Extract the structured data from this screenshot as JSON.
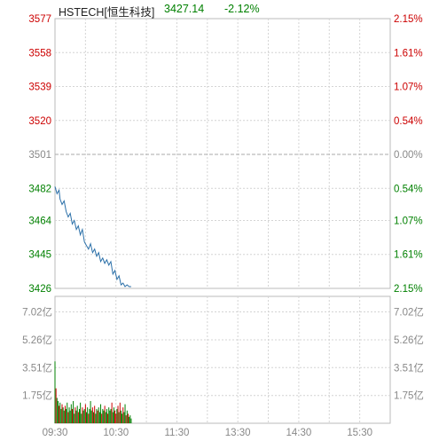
{
  "header": {
    "symbol": "HSTECH[恒生科技]",
    "price": "3427.14",
    "change_pct": "-2.12%"
  },
  "colors": {
    "up": "#cc0000",
    "down": "#008000",
    "neutral": "#888888",
    "price_line": "#2a6fa8",
    "grid": "#d4d4d4",
    "axis_text": "#333333"
  },
  "chart_data": [
    {
      "type": "line",
      "title": "",
      "xlabel": "",
      "ylabel": "",
      "ylim": [
        3426,
        3577
      ],
      "grid": true,
      "y_tick_labels_left": [
        "3577",
        "3558",
        "3539",
        "3520",
        "3501",
        "3482",
        "3464",
        "3445",
        "3426"
      ],
      "y_tick_values": [
        3577,
        3558,
        3539,
        3520,
        3501,
        3482,
        3464,
        3445,
        3426
      ],
      "y_tick_labels_right": [
        "2.15%",
        "1.61%",
        "1.07%",
        "0.54%",
        "0.00%",
        "0.54%",
        "1.07%",
        "1.61%",
        "2.15%"
      ],
      "y_tick_label_colors": [
        "up",
        "up",
        "up",
        "up",
        "neutral",
        "down",
        "down",
        "down",
        "down"
      ],
      "x_tick_labels": [
        "09:30",
        "10:30",
        "11:30",
        "13:30",
        "14:30",
        "15:30"
      ],
      "series": [
        {
          "x_minutes": [
            0,
            2,
            4,
            5,
            7,
            9,
            11,
            13,
            15,
            17,
            19,
            21,
            23,
            25,
            27,
            29,
            31,
            33,
            35,
            37,
            39,
            41,
            43,
            45,
            47,
            49,
            51,
            53,
            55,
            57,
            59,
            61,
            63,
            65,
            67,
            69,
            71,
            73,
            75
          ],
          "values": [
            3483,
            3479,
            3481,
            3476,
            3473,
            3475,
            3469,
            3466,
            3468,
            3462,
            3464,
            3459,
            3461,
            3456,
            3459,
            3452,
            3450,
            3448,
            3451,
            3446,
            3448,
            3444,
            3446,
            3441,
            3443,
            3440,
            3442,
            3439,
            3441,
            3434,
            3436,
            3431,
            3433,
            3428,
            3429,
            3427,
            3428,
            3427,
            3427
          ]
        }
      ]
    },
    {
      "type": "bar",
      "title": "",
      "ylim": [
        0,
        8.0
      ],
      "y_tick_labels": [
        "7.02亿",
        "5.26亿",
        "3.51亿",
        "1.75亿"
      ],
      "y_tick_values": [
        7.02,
        5.26,
        3.51,
        1.75
      ],
      "unit": "亿",
      "series": [
        {
          "x_minutes": [
            0,
            1,
            2,
            3,
            4,
            5,
            6,
            7,
            8,
            9,
            10,
            11,
            12,
            13,
            14,
            15,
            16,
            17,
            18,
            19,
            20,
            21,
            22,
            23,
            24,
            25,
            26,
            27,
            28,
            29,
            30,
            31,
            32,
            33,
            34,
            35,
            36,
            37,
            38,
            39,
            40,
            41,
            42,
            43,
            44,
            45,
            46,
            47,
            48,
            49,
            50,
            51,
            52,
            53,
            54,
            55,
            56,
            57,
            58,
            59,
            60,
            61,
            62,
            63,
            64,
            65,
            66,
            67,
            68,
            69,
            70,
            71,
            72,
            73,
            74,
            75
          ],
          "values": [
            3.9,
            2.2,
            1.6,
            1.4,
            1.1,
            1.3,
            0.9,
            1.2,
            1.0,
            0.8,
            1.1,
            0.9,
            1.3,
            0.7,
            1.0,
            0.8,
            1.2,
            0.9,
            1.4,
            0.6,
            1.0,
            0.8,
            1.1,
            0.7,
            0.9,
            1.3,
            0.6,
            1.0,
            0.8,
            0.9,
            1.2,
            0.7,
            1.0,
            0.6,
            0.9,
            1.4,
            0.8,
            1.0,
            0.7,
            1.1,
            0.6,
            0.9,
            0.8,
            1.0,
            0.7,
            1.2,
            0.6,
            0.9,
            0.8,
            1.1,
            0.7,
            0.9,
            0.6,
            1.0,
            0.8,
            0.9,
            1.3,
            0.7,
            1.0,
            0.8,
            0.6,
            0.9,
            1.1,
            0.7,
            1.3,
            0.8,
            0.6,
            1.0,
            0.7,
            1.2,
            0.5,
            0.8,
            0.6,
            0.4,
            0.5,
            0.3
          ],
          "direction": [
            "down",
            "up",
            "down",
            "down",
            "up",
            "down",
            "down",
            "up",
            "down",
            "down",
            "up",
            "down",
            "down",
            "up",
            "down",
            "down",
            "down",
            "up",
            "down",
            "down",
            "up",
            "down",
            "down",
            "up",
            "down",
            "down",
            "down",
            "up",
            "down",
            "down",
            "up",
            "down",
            "down",
            "up",
            "down",
            "down",
            "down",
            "up",
            "down",
            "up",
            "down",
            "down",
            "up",
            "down",
            "down",
            "down",
            "up",
            "down",
            "down",
            "up",
            "down",
            "down",
            "up",
            "down",
            "down",
            "down",
            "up",
            "down",
            "down",
            "up",
            "up",
            "down",
            "up",
            "down",
            "up",
            "down",
            "down",
            "up",
            "down",
            "down",
            "up",
            "down",
            "up",
            "down",
            "down",
            "down"
          ]
        }
      ]
    }
  ]
}
